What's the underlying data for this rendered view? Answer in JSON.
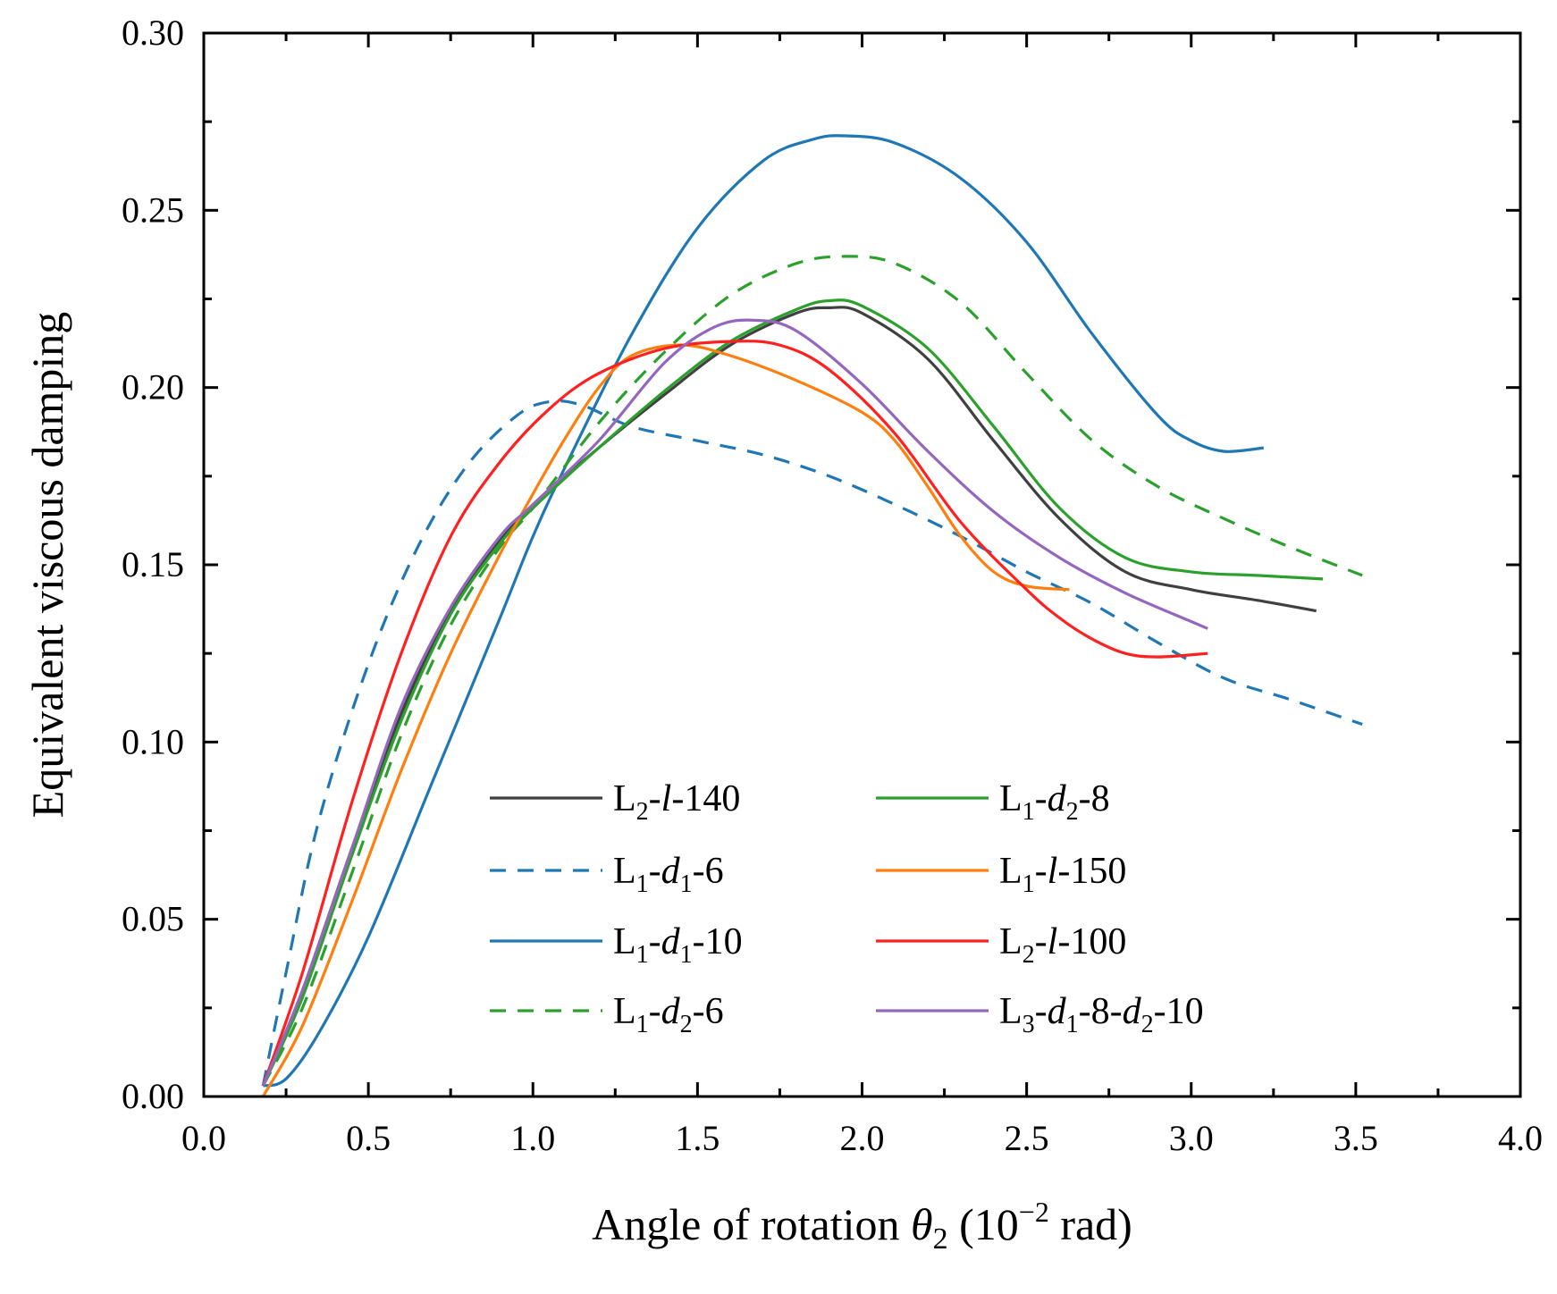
{
  "chart_data": {
    "type": "line",
    "title": "",
    "xlabel": {
      "prefix": "Angle of rotation ",
      "symbol": "θ",
      "symbol_sub": "2",
      "unit_open": " (10",
      "unit_sup": "−2",
      "unit_close": " rad)"
    },
    "ylabel": "Equivalent viscous damping",
    "xlim": [
      0.0,
      4.0
    ],
    "ylim": [
      0.0,
      0.3
    ],
    "x_ticks": [
      "0.0",
      "0.5",
      "1.0",
      "1.5",
      "2.0",
      "2.5",
      "3.0",
      "3.5",
      "4.0"
    ],
    "y_ticks": [
      "0.00",
      "0.05",
      "0.10",
      "0.15",
      "0.20",
      "0.25",
      "0.30"
    ],
    "grid": false,
    "legend_position": "lower-center",
    "series": [
      {
        "name": "L2-l-140",
        "color": "#404040",
        "dash": "solid",
        "label_parts": [
          {
            "t": "L"
          },
          {
            "t": "2",
            "s": "sub"
          },
          {
            "t": "-"
          },
          {
            "t": "l",
            "s": "it"
          },
          {
            "t": "-140"
          }
        ],
        "x": [
          0.18,
          0.3,
          0.45,
          0.6,
          0.75,
          0.9,
          1.0,
          1.2,
          1.4,
          1.6,
          1.8,
          1.9,
          2.0,
          2.2,
          2.4,
          2.6,
          2.8,
          3.0,
          3.2,
          3.38
        ],
        "y": [
          0.003,
          0.03,
          0.07,
          0.108,
          0.137,
          0.157,
          0.167,
          0.183,
          0.198,
          0.212,
          0.221,
          0.2225,
          0.221,
          0.208,
          0.185,
          0.163,
          0.148,
          0.143,
          0.14,
          0.137
        ]
      },
      {
        "name": "L1-d1-6",
        "color": "#1f77b4",
        "dash": "dashed",
        "label_parts": [
          {
            "t": "L"
          },
          {
            "t": "1",
            "s": "sub"
          },
          {
            "t": "-"
          },
          {
            "t": "d",
            "s": "it"
          },
          {
            "t": "1",
            "s": "sub"
          },
          {
            "t": "-6"
          }
        ],
        "x": [
          0.18,
          0.25,
          0.35,
          0.5,
          0.65,
          0.8,
          0.95,
          1.05,
          1.15,
          1.3,
          1.5,
          1.7,
          1.9,
          2.1,
          2.3,
          2.5,
          2.7,
          2.9,
          3.1,
          3.3,
          3.52
        ],
        "y": [
          0.003,
          0.035,
          0.078,
          0.122,
          0.155,
          0.178,
          0.192,
          0.196,
          0.195,
          0.189,
          0.185,
          0.181,
          0.175,
          0.167,
          0.158,
          0.148,
          0.139,
          0.128,
          0.118,
          0.112,
          0.105
        ]
      },
      {
        "name": "L1-d1-10",
        "color": "#1f77b4",
        "dash": "solid",
        "label_parts": [
          {
            "t": "L"
          },
          {
            "t": "1",
            "s": "sub"
          },
          {
            "t": "-"
          },
          {
            "t": "d",
            "s": "it"
          },
          {
            "t": "1",
            "s": "sub"
          },
          {
            "t": "-10"
          }
        ],
        "x": [
          0.18,
          0.25,
          0.35,
          0.5,
          0.7,
          0.9,
          1.0,
          1.1,
          1.3,
          1.5,
          1.7,
          1.85,
          1.95,
          2.1,
          2.3,
          2.5,
          2.7,
          2.9,
          3.0,
          3.1,
          3.22
        ],
        "y": [
          0.003,
          0.005,
          0.018,
          0.045,
          0.09,
          0.135,
          0.158,
          0.178,
          0.215,
          0.245,
          0.264,
          0.27,
          0.271,
          0.269,
          0.259,
          0.241,
          0.215,
          0.192,
          0.185,
          0.182,
          0.183
        ]
      },
      {
        "name": "L1-d2-6",
        "color": "#2ca02c",
        "dash": "dashed",
        "label_parts": [
          {
            "t": "L"
          },
          {
            "t": "1",
            "s": "sub"
          },
          {
            "t": "-"
          },
          {
            "t": "d",
            "s": "it"
          },
          {
            "t": "2",
            "s": "sub"
          },
          {
            "t": "-6"
          }
        ],
        "x": [
          0.18,
          0.3,
          0.45,
          0.6,
          0.75,
          0.9,
          1.0,
          1.2,
          1.4,
          1.6,
          1.8,
          1.95,
          2.1,
          2.3,
          2.5,
          2.7,
          2.9,
          3.1,
          3.3,
          3.52
        ],
        "y": [
          0.003,
          0.025,
          0.063,
          0.102,
          0.133,
          0.155,
          0.166,
          0.19,
          0.21,
          0.226,
          0.235,
          0.237,
          0.235,
          0.224,
          0.204,
          0.185,
          0.172,
          0.163,
          0.155,
          0.147
        ]
      },
      {
        "name": "L1-d2-8",
        "color": "#2ca02c",
        "dash": "solid",
        "label_parts": [
          {
            "t": "L"
          },
          {
            "t": "1",
            "s": "sub"
          },
          {
            "t": "-"
          },
          {
            "t": "d",
            "s": "it"
          },
          {
            "t": "2",
            "s": "sub"
          },
          {
            "t": "-8"
          }
        ],
        "x": [
          0.18,
          0.3,
          0.45,
          0.6,
          0.75,
          0.9,
          1.0,
          1.2,
          1.4,
          1.6,
          1.8,
          1.9,
          2.0,
          2.2,
          2.4,
          2.6,
          2.8,
          3.0,
          3.2,
          3.4
        ],
        "y": [
          0.003,
          0.028,
          0.068,
          0.106,
          0.136,
          0.156,
          0.166,
          0.183,
          0.199,
          0.213,
          0.222,
          0.2245,
          0.223,
          0.211,
          0.189,
          0.166,
          0.152,
          0.148,
          0.147,
          0.146
        ]
      },
      {
        "name": "L1-l-150",
        "color": "#ff7f0e",
        "dash": "solid",
        "label_parts": [
          {
            "t": "L"
          },
          {
            "t": "1",
            "s": "sub"
          },
          {
            "t": "-"
          },
          {
            "t": "l",
            "s": "it"
          },
          {
            "t": "-150"
          }
        ],
        "x": [
          0.18,
          0.3,
          0.45,
          0.6,
          0.75,
          0.9,
          1.0,
          1.1,
          1.2,
          1.3,
          1.45,
          1.6,
          1.8,
          2.0,
          2.1,
          2.2,
          2.3,
          2.4,
          2.5,
          2.63
        ],
        "y": [
          0.0,
          0.02,
          0.055,
          0.092,
          0.125,
          0.153,
          0.17,
          0.186,
          0.2,
          0.209,
          0.212,
          0.209,
          0.202,
          0.193,
          0.185,
          0.172,
          0.158,
          0.148,
          0.144,
          0.143
        ]
      },
      {
        "name": "L2-l-100",
        "color": "#ff2020",
        "dash": "solid",
        "label_parts": [
          {
            "t": "L"
          },
          {
            "t": "2",
            "s": "sub"
          },
          {
            "t": "-"
          },
          {
            "t": "l",
            "s": "it"
          },
          {
            "t": "-100"
          }
        ],
        "x": [
          0.18,
          0.3,
          0.45,
          0.6,
          0.75,
          0.9,
          1.05,
          1.2,
          1.4,
          1.6,
          1.75,
          1.9,
          2.1,
          2.3,
          2.5,
          2.6,
          2.7,
          2.8,
          2.9,
          3.05
        ],
        "y": [
          0.003,
          0.035,
          0.083,
          0.125,
          0.158,
          0.179,
          0.194,
          0.204,
          0.211,
          0.213,
          0.212,
          0.205,
          0.187,
          0.162,
          0.143,
          0.135,
          0.129,
          0.125,
          0.124,
          0.125
        ]
      },
      {
        "name": "L3-d1-8-d2-10",
        "color": "#9467bd",
        "dash": "solid",
        "label_parts": [
          {
            "t": "L"
          },
          {
            "t": "3",
            "s": "sub"
          },
          {
            "t": "-"
          },
          {
            "t": "d",
            "s": "it"
          },
          {
            "t": "1",
            "s": "sub"
          },
          {
            "t": "-8-"
          },
          {
            "t": "d",
            "s": "it"
          },
          {
            "t": "2",
            "s": "sub"
          },
          {
            "t": "-10"
          }
        ],
        "x": [
          0.18,
          0.3,
          0.45,
          0.6,
          0.75,
          0.9,
          1.0,
          1.2,
          1.4,
          1.55,
          1.67,
          1.8,
          2.0,
          2.2,
          2.4,
          2.6,
          2.8,
          3.0,
          3.05
        ],
        "y": [
          0.003,
          0.03,
          0.07,
          0.11,
          0.138,
          0.158,
          0.167,
          0.185,
          0.207,
          0.217,
          0.219,
          0.216,
          0.201,
          0.182,
          0.165,
          0.152,
          0.142,
          0.134,
          0.132
        ]
      }
    ]
  }
}
